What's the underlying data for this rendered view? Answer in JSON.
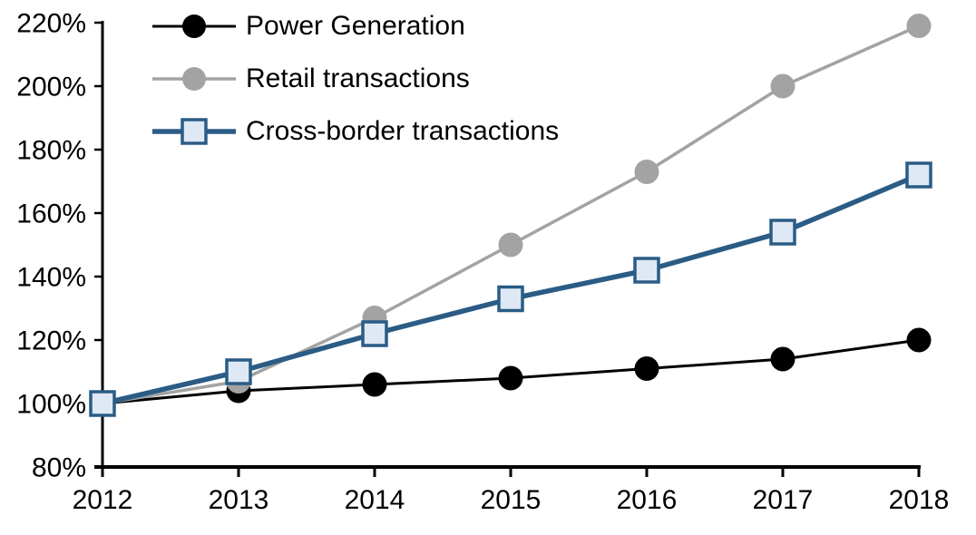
{
  "chart_data": {
    "type": "line",
    "title": "",
    "xlabel": "",
    "ylabel": "",
    "x": [
      "2012",
      "2013",
      "2014",
      "2015",
      "2016",
      "2017",
      "2018"
    ],
    "series": [
      {
        "name": "Power Generation",
        "values": [
          100,
          104,
          106,
          108,
          111,
          114,
          120
        ],
        "color": "#000000",
        "marker": "circle",
        "marker_fill": "#000000",
        "line_width": 3
      },
      {
        "name": "Retail transactions",
        "values": [
          100,
          107,
          127,
          150,
          173,
          200,
          219
        ],
        "color": "#A3A3A3",
        "marker": "circle",
        "marker_fill": "#A3A3A3",
        "line_width": 3.5
      },
      {
        "name": "Cross-border transactions",
        "values": [
          100,
          110,
          122,
          133,
          142,
          154,
          172
        ],
        "color": "#2A5C85",
        "marker": "square",
        "marker_fill": "#DEE9F5",
        "line_width": 5.5
      }
    ],
    "ylim": [
      80,
      220
    ],
    "ytick_step": 20,
    "ytick_suffix": "%",
    "y_tick_labels": [
      "80%",
      "100%",
      "120%",
      "140%",
      "160%",
      "180%",
      "200%",
      "220%"
    ],
    "legend_position": "top-left-inside",
    "grid": false,
    "axis_color": "#000000"
  }
}
